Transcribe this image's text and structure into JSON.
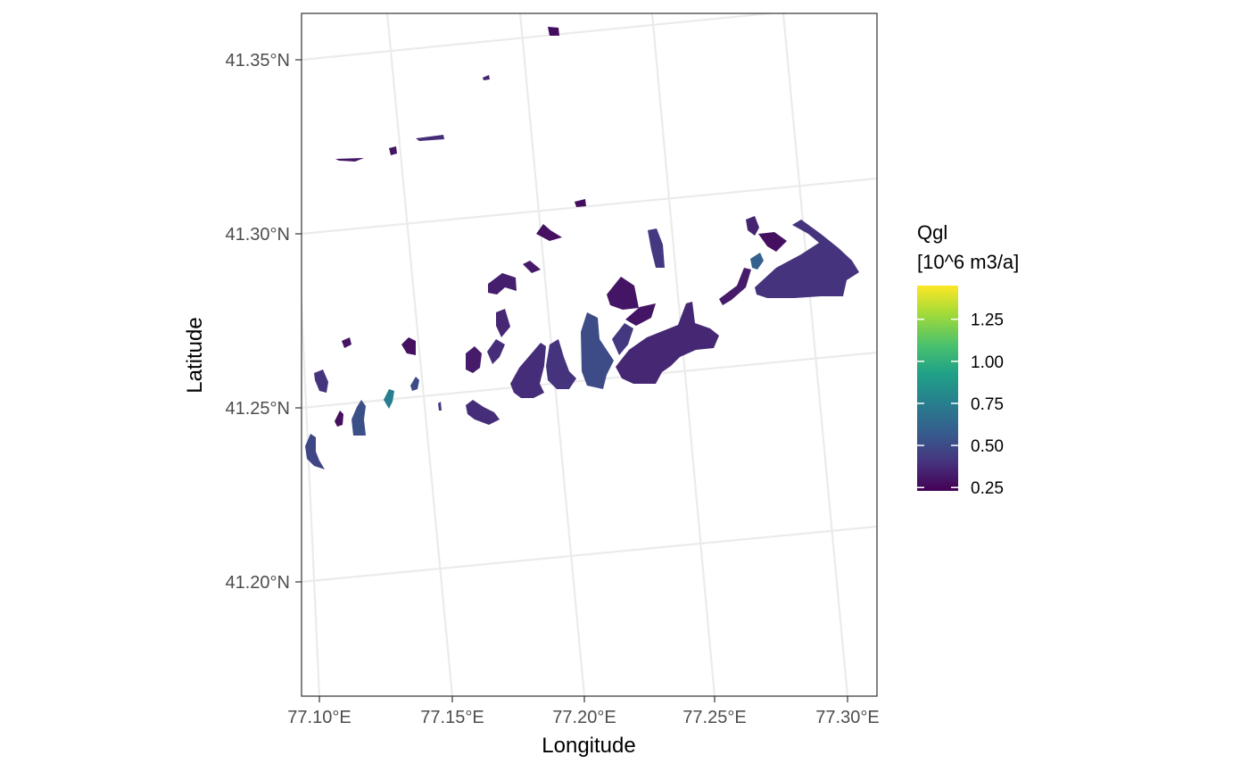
{
  "map": {
    "axes": {
      "x_title": "Longitude",
      "y_title": "Latitude",
      "x_ticks": [
        "77.10°E",
        "77.15°E",
        "77.20°E",
        "77.25°E",
        "77.30°E"
      ],
      "y_ticks": [
        "41.35°N",
        "41.30°N",
        "41.25°N",
        "41.20°N"
      ],
      "x_values": [
        77.1,
        77.15,
        77.2,
        77.25,
        77.3
      ],
      "y_values": [
        41.35,
        41.3,
        41.25,
        41.2
      ],
      "xlim": [
        77.093,
        77.312
      ],
      "ylim": [
        41.168,
        41.362
      ]
    },
    "legend": {
      "title_line1": "Qgl",
      "title_line2": "[10^6 m3/a]",
      "labels": [
        "1.25",
        "1.00",
        "0.75",
        "0.50",
        "0.25"
      ],
      "values": [
        1.25,
        1.0,
        0.75,
        0.5,
        0.25
      ],
      "range": [
        0.23,
        1.45
      ],
      "palette": "viridis",
      "colors": [
        "#440154",
        "#3b528b",
        "#21908c",
        "#5dc863",
        "#fde725"
      ]
    },
    "glaciers": [
      {
        "lon": 77.189,
        "lat": 41.357,
        "qgl": 0.27
      },
      {
        "lon": 77.165,
        "lat": 41.344,
        "qgl": 0.35
      },
      {
        "lon": 77.147,
        "lat": 41.328,
        "qgl": 0.38
      },
      {
        "lon": 77.128,
        "lat": 41.324,
        "qgl": 0.3
      },
      {
        "lon": 77.11,
        "lat": 41.321,
        "qgl": 0.3
      },
      {
        "lon": 77.19,
        "lat": 41.309,
        "qgl": 0.27
      },
      {
        "lon": 77.185,
        "lat": 41.3,
        "qgl": 0.28
      },
      {
        "lon": 77.161,
        "lat": 41.288,
        "qgl": 0.33
      },
      {
        "lon": 77.178,
        "lat": 41.29,
        "qgl": 0.32
      },
      {
        "lon": 77.198,
        "lat": 41.28,
        "qgl": 0.3
      },
      {
        "lon": 77.215,
        "lat": 41.276,
        "qgl": 0.3
      },
      {
        "lon": 77.22,
        "lat": 41.296,
        "qgl": 0.42
      },
      {
        "lon": 77.216,
        "lat": 41.265,
        "qgl": 0.36
      },
      {
        "lon": 77.235,
        "lat": 41.268,
        "qgl": 0.36
      },
      {
        "lon": 77.265,
        "lat": 41.29,
        "qgl": 0.6
      },
      {
        "lon": 77.267,
        "lat": 41.293,
        "qgl": 0.28
      },
      {
        "lon": 77.287,
        "lat": 41.293,
        "qgl": 0.4
      },
      {
        "lon": 77.27,
        "lat": 41.298,
        "qgl": 0.35
      },
      {
        "lon": 77.252,
        "lat": 41.284,
        "qgl": 0.32
      },
      {
        "lon": 77.196,
        "lat": 41.27,
        "qgl": 0.5
      },
      {
        "lon": 77.18,
        "lat": 41.263,
        "qgl": 0.38
      },
      {
        "lon": 77.164,
        "lat": 41.262,
        "qgl": 0.32
      },
      {
        "lon": 77.171,
        "lat": 41.267,
        "qgl": 0.38
      },
      {
        "lon": 77.166,
        "lat": 41.258,
        "qgl": 0.4
      },
      {
        "lon": 77.132,
        "lat": 41.266,
        "qgl": 0.28
      },
      {
        "lon": 77.11,
        "lat": 41.266,
        "qgl": 0.3
      },
      {
        "lon": 77.101,
        "lat": 41.258,
        "qgl": 0.4
      },
      {
        "lon": 77.115,
        "lat": 41.248,
        "qgl": 0.52
      },
      {
        "lon": 77.125,
        "lat": 41.251,
        "qgl": 0.75
      },
      {
        "lon": 77.133,
        "lat": 41.254,
        "qgl": 0.5
      },
      {
        "lon": 77.107,
        "lat": 41.248,
        "qgl": 0.28
      },
      {
        "lon": 77.098,
        "lat": 41.238,
        "qgl": 0.48
      },
      {
        "lon": 77.147,
        "lat": 41.249,
        "qgl": 0.42
      },
      {
        "lon": 77.16,
        "lat": 41.25,
        "qgl": 0.38
      },
      {
        "lon": 77.187,
        "lat": 41.264,
        "qgl": 0.42
      }
    ]
  }
}
